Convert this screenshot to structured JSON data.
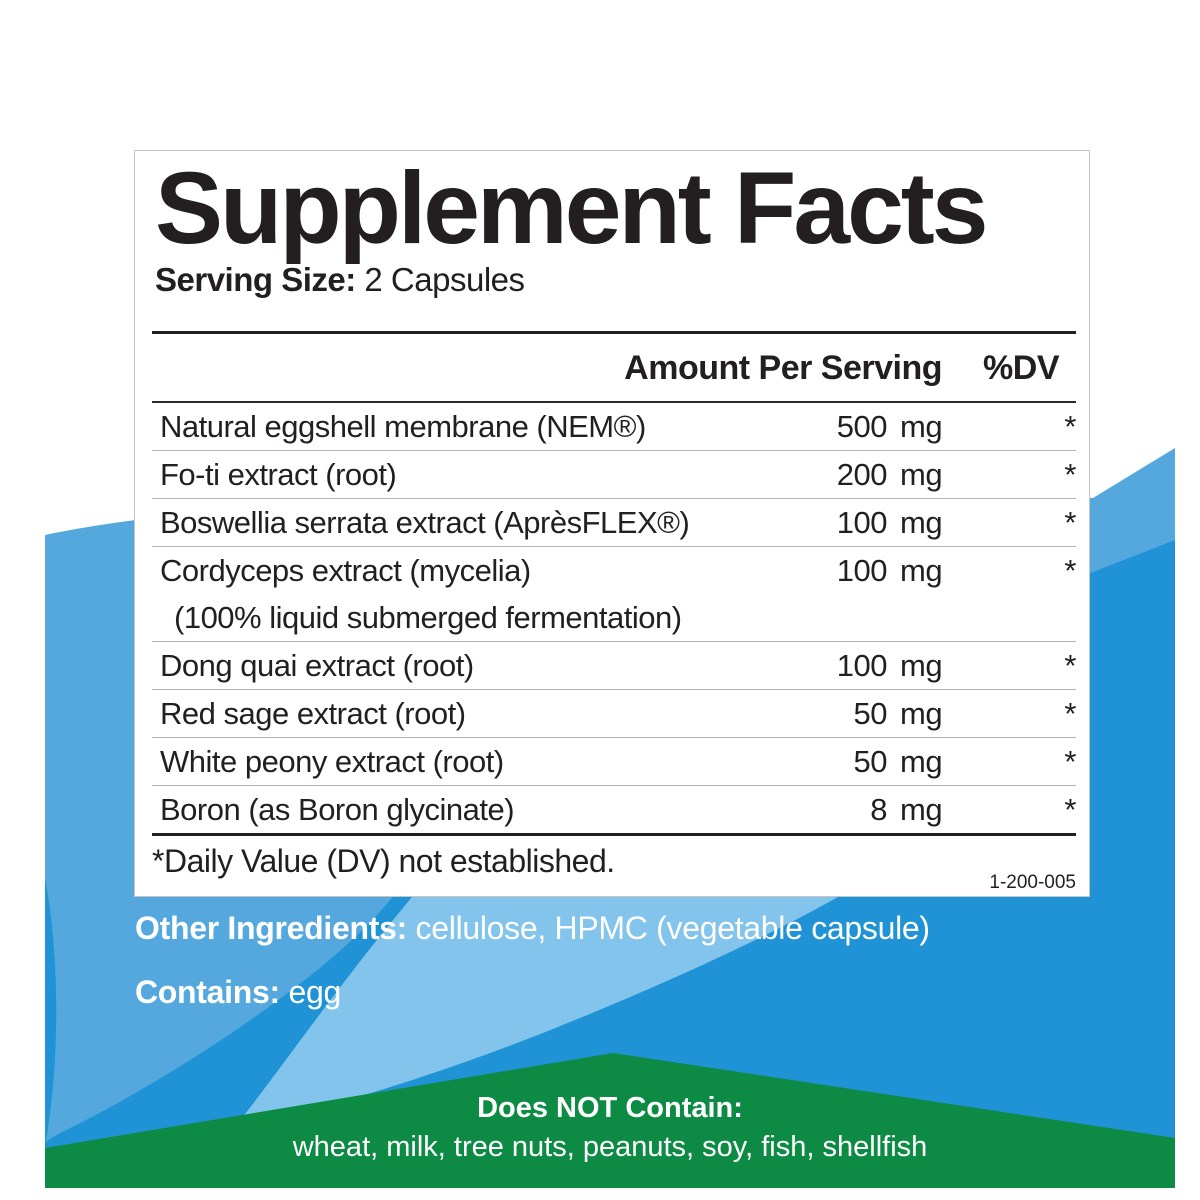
{
  "colors": {
    "text_dark": "#231f20",
    "text_white": "#ffffff",
    "panel_border": "#c5c5c5",
    "blue_light": "#54a8de",
    "blue_main": "#1f93d6",
    "blue_swoosh": "#82c4eb",
    "green": "#0d8b44"
  },
  "panel": {
    "title": "Supplement Facts",
    "serving_size_label": "Serving Size:",
    "serving_size_value": "2 Capsules",
    "columns": {
      "amount_header": "Amount Per Serving",
      "dv_header": "%DV"
    },
    "rows": [
      {
        "name": "Natural eggshell membrane (NEM®)",
        "amount": "500",
        "unit": "mg",
        "dv": "*"
      },
      {
        "name": "Fo-ti extract (root)",
        "amount": "200",
        "unit": "mg",
        "dv": "*"
      },
      {
        "name": "Boswellia serrata extract (AprèsFLEX®)",
        "amount": "100",
        "unit": "mg",
        "dv": "*"
      },
      {
        "name": "Cordyceps extract (mycelia)",
        "name2": "(100% liquid submerged fermentation)",
        "amount": "100",
        "unit": "mg",
        "dv": "*"
      },
      {
        "name": "Dong quai extract (root)",
        "amount": "100",
        "unit": "mg",
        "dv": "*"
      },
      {
        "name": "Red sage extract (root)",
        "amount": "50",
        "unit": "mg",
        "dv": "*"
      },
      {
        "name": "White peony extract (root)",
        "amount": "50",
        "unit": "mg",
        "dv": "*"
      },
      {
        "name": "Boron (as Boron glycinate)",
        "amount": "8",
        "unit": "mg",
        "dv": "*"
      }
    ],
    "footnote": "*Daily Value (DV) not established.",
    "code": "1-200-005"
  },
  "other_ingredients": {
    "label": "Other Ingredients:",
    "value": " cellulose, HPMC (vegetable capsule)"
  },
  "contains": {
    "label": "Contains:",
    "value": " egg"
  },
  "does_not_contain": {
    "heading": "Does NOT Contain:",
    "items": "wheat, milk, tree nuts, peanuts, soy, fish, shellfish"
  }
}
